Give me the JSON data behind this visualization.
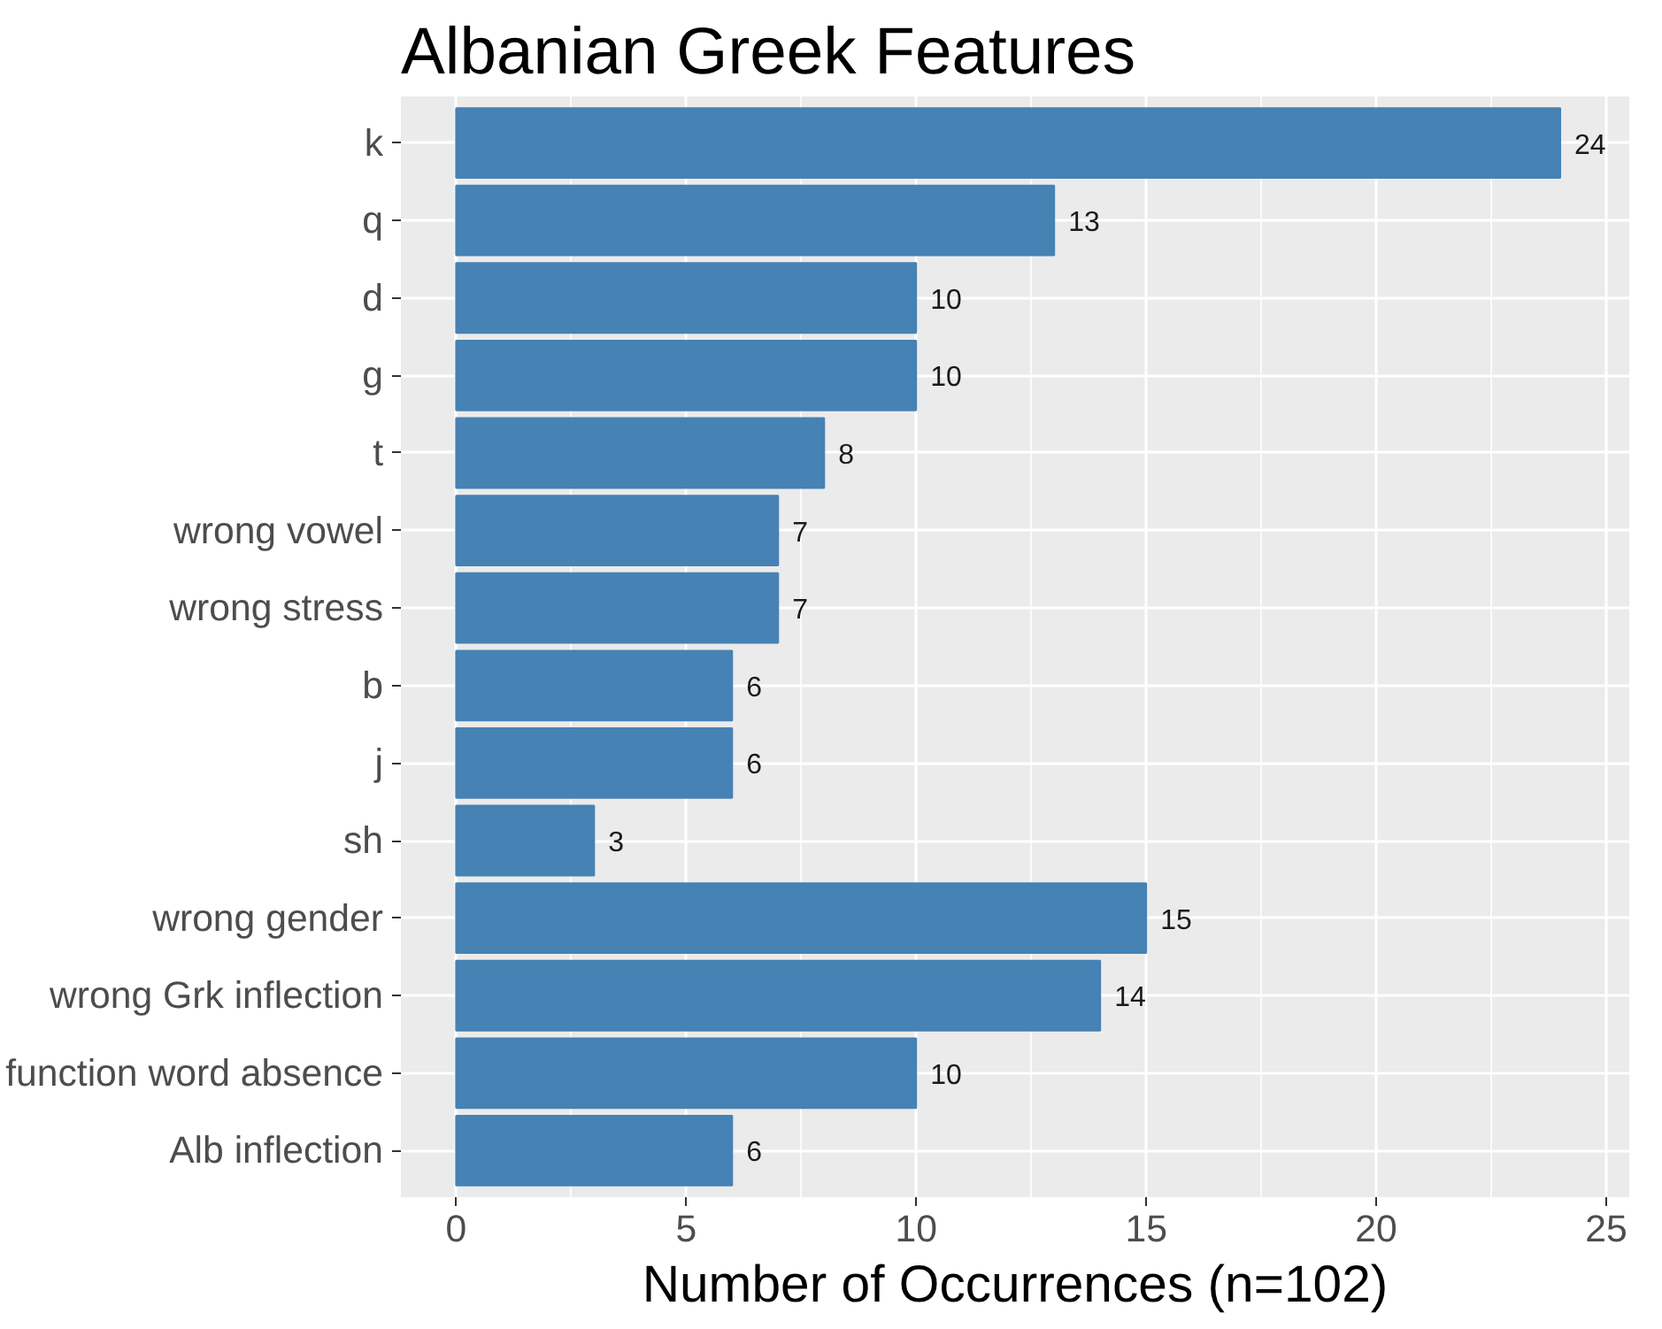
{
  "chart_data": {
    "type": "bar",
    "orientation": "horizontal",
    "title": "Albanian Greek Features",
    "xlabel": "Number of Occurrences (n=102)",
    "categories": [
      "k",
      "q",
      "d",
      "g",
      "t",
      "wrong vowel",
      "wrong stress",
      "b",
      "j",
      "sh",
      "wrong gender",
      "wrong Grk inflection",
      "function word absence",
      "Alb inflection"
    ],
    "values": [
      24,
      13,
      10,
      10,
      8,
      7,
      7,
      6,
      6,
      3,
      15,
      14,
      10,
      6
    ],
    "color": "#4682b4",
    "xlim": [
      -1.2,
      25.5
    ],
    "xticks": [
      0,
      5,
      10,
      15,
      20,
      25
    ],
    "grid": true,
    "data_labels": true
  }
}
